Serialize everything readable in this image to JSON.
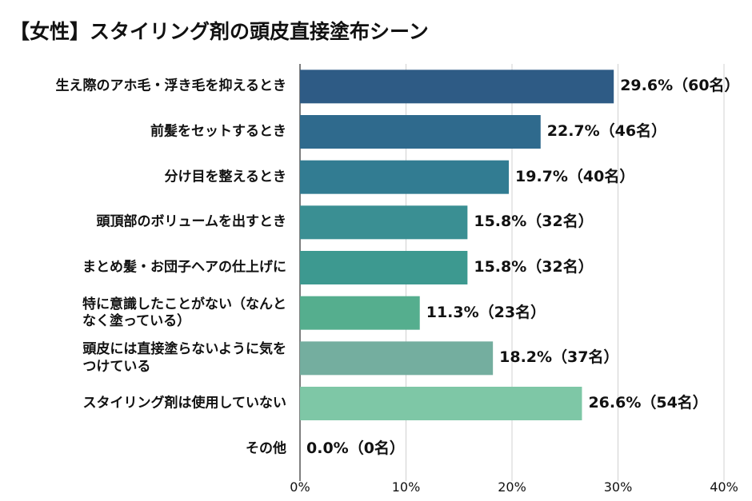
{
  "chart_data": {
    "type": "barh",
    "title": "【女性】スタイリング剤の頭皮直接塗布シーン",
    "categories": [
      "生え際のアホ毛・浮き毛を抑えるとき",
      "前髪をセットするとき",
      "分け目を整えるとき",
      "頭頂部のボリュームを出すとき",
      "まとめ髪・お団子ヘアの仕上げに",
      "特に意識したことがない（なんと\nなく塗っている）",
      "頭皮には直接塗らないように気を\nつけている",
      "スタイリング剤は使用していない",
      "その他"
    ],
    "values": [
      29.6,
      22.7,
      19.7,
      15.8,
      15.8,
      11.3,
      18.2,
      26.6,
      0.0
    ],
    "value_labels": [
      "29.6%（60名）",
      "22.7%（46名）",
      "19.7%（40名）",
      "15.8%（32名）",
      "15.8%（32名）",
      "11.3%（23名）",
      "18.2%（37名）",
      "26.6%（54名）",
      "0.0%（0名）"
    ],
    "colors": [
      "#2e5b85",
      "#2f6a8d",
      "#327c92",
      "#3a8f93",
      "#3d9990",
      "#55ae8e",
      "#74ae9f",
      "#7ec7a6",
      "#8fd0b0"
    ],
    "xlim": [
      0,
      40
    ],
    "xticks": [
      {
        "value": 0,
        "label": "0%"
      },
      {
        "value": 10,
        "label": "10%"
      },
      {
        "value": 20,
        "label": "20%"
      },
      {
        "value": 30,
        "label": "30%"
      },
      {
        "value": 40,
        "label": "40%"
      }
    ],
    "grid": true
  }
}
